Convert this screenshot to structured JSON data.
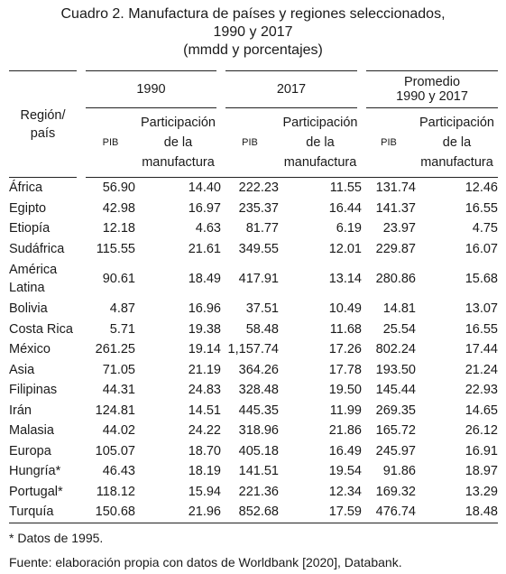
{
  "title": {
    "line1": "Cuadro 2. Manufactura de países y regiones seleccionados,",
    "line2": "1990 y 2017",
    "line3": "(mmdd y porcentajes)"
  },
  "header": {
    "region": [
      "Región/",
      "país"
    ],
    "groups": [
      {
        "label": [
          "1990"
        ]
      },
      {
        "label": [
          "2017"
        ]
      },
      {
        "label": [
          "Promedio",
          "1990 y 2017"
        ]
      }
    ],
    "pib": "PIB",
    "participacion": [
      "Participación",
      "de la",
      "manufactura"
    ]
  },
  "rows": [
    {
      "region": [
        "África"
      ],
      "values": [
        "56.90",
        "14.40",
        "222.23",
        "11.55",
        "131.74",
        "12.46"
      ]
    },
    {
      "region": [
        "Egipto"
      ],
      "values": [
        "42.98",
        "16.97",
        "235.37",
        "16.44",
        "141.37",
        "16.55"
      ]
    },
    {
      "region": [
        "Etiopía"
      ],
      "values": [
        "12.18",
        "4.63",
        "81.77",
        "6.19",
        "23.97",
        "4.75"
      ]
    },
    {
      "region": [
        "Sudáfrica"
      ],
      "values": [
        "115.55",
        "21.61",
        "349.55",
        "12.01",
        "229.87",
        "16.07"
      ]
    },
    {
      "region": [
        "América",
        "Latina"
      ],
      "values": [
        "90.61",
        "18.49",
        "417.91",
        "13.14",
        "280.86",
        "15.68"
      ]
    },
    {
      "region": [
        "Bolivia"
      ],
      "values": [
        "4.87",
        "16.96",
        "37.51",
        "10.49",
        "14.81",
        "13.07"
      ]
    },
    {
      "region": [
        "Costa Rica"
      ],
      "values": [
        "5.71",
        "19.38",
        "58.48",
        "11.68",
        "25.54",
        "16.55"
      ]
    },
    {
      "region": [
        "México"
      ],
      "values": [
        "261.25",
        "19.14",
        "1,157.74",
        "17.26",
        "802.24",
        "17.44"
      ]
    },
    {
      "region": [
        "Asia"
      ],
      "values": [
        "71.05",
        "21.19",
        "364.26",
        "17.78",
        "193.50",
        "21.24"
      ]
    },
    {
      "region": [
        "Filipinas"
      ],
      "values": [
        "44.31",
        "24.83",
        "328.48",
        "19.50",
        "145.44",
        "22.93"
      ]
    },
    {
      "region": [
        "Irán"
      ],
      "values": [
        "124.81",
        "14.51",
        "445.35",
        "11.99",
        "269.35",
        "14.65"
      ]
    },
    {
      "region": [
        "Malasia"
      ],
      "values": [
        "44.02",
        "24.22",
        "318.96",
        "21.86",
        "165.72",
        "26.12"
      ]
    },
    {
      "region": [
        "Europa"
      ],
      "values": [
        "105.07",
        "18.70",
        "405.18",
        "16.49",
        "245.97",
        "16.91"
      ]
    },
    {
      "region": [
        "Hungría*"
      ],
      "values": [
        "46.43",
        "18.19",
        "141.51",
        "19.54",
        "91.86",
        "18.97"
      ]
    },
    {
      "region": [
        "Portugal*"
      ],
      "values": [
        "118.12",
        "15.94",
        "221.36",
        "12.34",
        "169.32",
        "13.29"
      ]
    },
    {
      "region": [
        "Turquía"
      ],
      "values": [
        "150.68",
        "21.96",
        "852.68",
        "17.59",
        "476.74",
        "18.48"
      ]
    }
  ],
  "notes": {
    "asterisk": "* Datos de 1995.",
    "source": "Fuente: elaboración propia con datos de Worldbank [2020], Databank."
  }
}
